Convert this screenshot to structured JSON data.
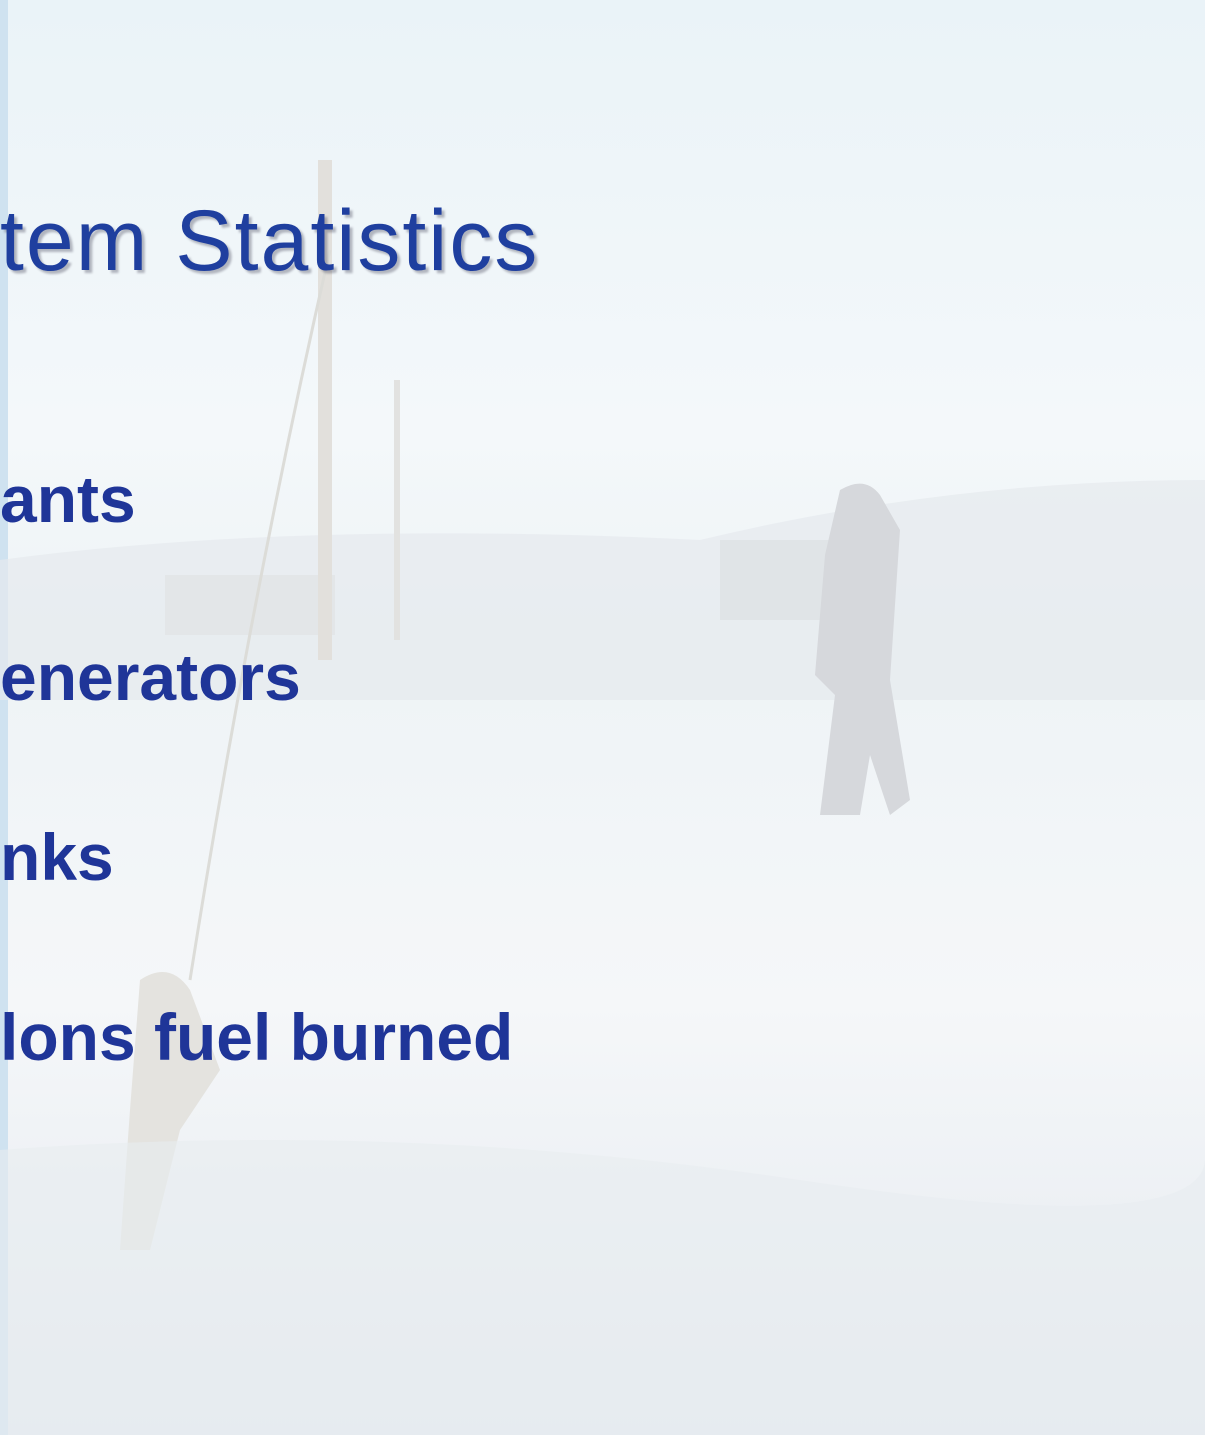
{
  "title": "tem Statistics",
  "bullets": [
    "ants",
    "enerators",
    "nks",
    "lons fuel burned"
  ]
}
